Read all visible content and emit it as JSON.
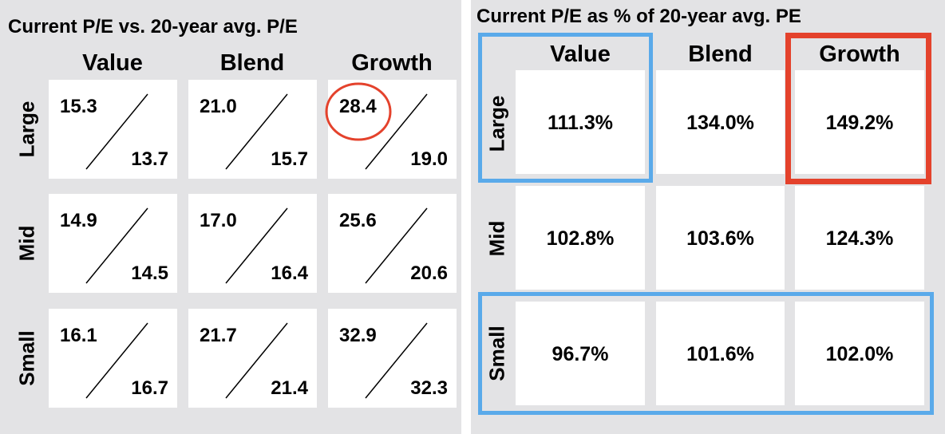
{
  "colors": {
    "highlight_blue": "#5aaaea",
    "highlight_red": "#e4422c",
    "circle_red": "#e4422c",
    "panel_bg": "#e3e3e5",
    "cell_bg": "#ffffff"
  },
  "chart_data": [
    {
      "type": "table",
      "title": "Current P/E vs. 20-year avg. P/E",
      "columns": [
        "Value",
        "Blend",
        "Growth"
      ],
      "rows": [
        "Large",
        "Mid",
        "Small"
      ],
      "cells": [
        [
          {
            "current": "15.3",
            "average": "13.7"
          },
          {
            "current": "21.0",
            "average": "15.7"
          },
          {
            "current": "28.4",
            "average": "19.0"
          }
        ],
        [
          {
            "current": "14.9",
            "average": "14.5"
          },
          {
            "current": "17.0",
            "average": "16.4"
          },
          {
            "current": "25.6",
            "average": "20.6"
          }
        ],
        [
          {
            "current": "16.1",
            "average": "16.7"
          },
          {
            "current": "21.7",
            "average": "21.4"
          },
          {
            "current": "32.9",
            "average": "32.3"
          }
        ]
      ],
      "annotations": [
        {
          "type": "circle",
          "target": "Large/Growth current value",
          "color": "red"
        }
      ]
    },
    {
      "type": "table",
      "title": "Current P/E as % of 20-year avg. PE",
      "columns": [
        "Value",
        "Blend",
        "Growth"
      ],
      "rows": [
        "Large",
        "Mid",
        "Small"
      ],
      "cells": [
        [
          "111.3%",
          "134.0%",
          "149.2%"
        ],
        [
          "102.8%",
          "103.6%",
          "124.3%"
        ],
        [
          "96.7%",
          "101.6%",
          "102.0%"
        ]
      ],
      "annotations": [
        {
          "type": "box",
          "target": "Large/Value",
          "color": "blue"
        },
        {
          "type": "box",
          "target": "Large/Growth",
          "color": "red"
        },
        {
          "type": "box",
          "target": "Small row",
          "color": "blue"
        }
      ]
    }
  ]
}
